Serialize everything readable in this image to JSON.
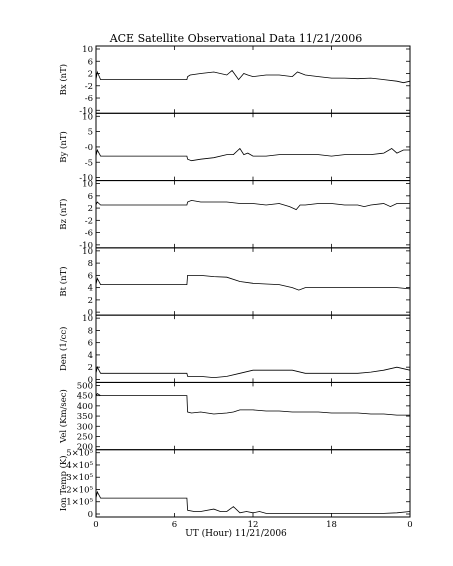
{
  "chart_data": {
    "type": "line",
    "title": "ACE Satellite Observational Data   11/21/2006",
    "xlabel": "UT (Hour)   11/21/2006",
    "x_ticks": [
      "0",
      "6",
      "12",
      "18",
      "0"
    ],
    "xlim": [
      0,
      24
    ],
    "panels": [
      {
        "ylabel": "Bx (nT)",
        "ylim": [
          -10,
          10
        ],
        "ytick_labels": [
          "10",
          "6",
          "2",
          "-2",
          "-6",
          "-10"
        ],
        "y_ticks": [
          10,
          6,
          2,
          -2,
          -6,
          -10
        ],
        "x": [
          0,
          0.1,
          0.25,
          0.35,
          6.95,
          7.0,
          7.2,
          8,
          9,
          10,
          10.4,
          10.9,
          11.3,
          11.6,
          12,
          13,
          14,
          15,
          15.4,
          16,
          17,
          18,
          19,
          20,
          21,
          22,
          23,
          23.5,
          24
        ],
        "values": [
          0,
          2.5,
          1,
          0,
          0,
          1,
          1.5,
          2,
          2.5,
          1.5,
          3,
          0,
          2,
          1.5,
          1,
          1.5,
          1.5,
          1,
          2.5,
          1.5,
          1,
          0.5,
          0.5,
          0.3,
          0.5,
          0,
          -0.5,
          -1,
          -0.5
        ]
      },
      {
        "ylabel": "By (nT)",
        "ylim": [
          -10,
          10
        ],
        "ytick_labels": [
          "10",
          "5",
          "-0",
          "-5",
          "-10"
        ],
        "y_ticks": [
          10,
          5,
          0,
          -5,
          -10
        ],
        "x": [
          0,
          0.1,
          0.35,
          6.95,
          7.0,
          7.3,
          8,
          9,
          10,
          10.5,
          11,
          11.3,
          11.6,
          12,
          13,
          14,
          15,
          16,
          17,
          18,
          19,
          20,
          21,
          22,
          22.6,
          23,
          23.5,
          24
        ],
        "values": [
          -3,
          -1,
          -3,
          -3,
          -4,
          -4.5,
          -4,
          -3.5,
          -2.5,
          -2.5,
          -0.5,
          -2.5,
          -2,
          -3,
          -3,
          -2.5,
          -2.5,
          -2.5,
          -2.5,
          -3,
          -2.5,
          -2.5,
          -2.5,
          -2,
          -0.5,
          -2,
          -1,
          -1
        ]
      },
      {
        "ylabel": "Bz (nT)",
        "ylim": [
          -10,
          10
        ],
        "ytick_labels": [
          "10",
          "6",
          "2",
          "-2",
          "-6",
          "-10"
        ],
        "y_ticks": [
          10,
          6,
          2,
          -2,
          -6,
          -10
        ],
        "x": [
          0,
          0.1,
          0.35,
          6.95,
          7.0,
          7.3,
          8,
          9,
          10,
          11,
          12,
          13,
          14,
          14.8,
          15.3,
          15.6,
          16,
          17,
          18,
          19,
          20,
          20.5,
          21,
          22,
          22.5,
          23,
          24
        ],
        "values": [
          3,
          4,
          3,
          3,
          4,
          4.5,
          4,
          4,
          4,
          3.5,
          3.5,
          3,
          3.5,
          2.5,
          1.5,
          3,
          3,
          3.5,
          3.5,
          3,
          3,
          2.5,
          3,
          3.5,
          2.5,
          3.5,
          3.5
        ]
      },
      {
        "ylabel": "Bt (nT)",
        "ylim": [
          0,
          10
        ],
        "ytick_labels": [
          "10",
          "8",
          "6",
          "4",
          "2",
          "0"
        ],
        "y_ticks": [
          10,
          8,
          6,
          4,
          2,
          0
        ],
        "x": [
          0,
          0.1,
          0.35,
          6.95,
          7.0,
          8,
          9,
          10,
          11,
          12,
          13,
          14,
          15,
          15.5,
          16,
          17,
          18,
          19,
          20,
          21,
          22,
          23,
          24
        ],
        "values": [
          4.5,
          5.5,
          4.5,
          4.5,
          6,
          6,
          5.8,
          5.7,
          5,
          4.7,
          4.6,
          4.5,
          4,
          3.6,
          4,
          4,
          4,
          4,
          4,
          4,
          4,
          4,
          3.8
        ]
      },
      {
        "ylabel": "Den (1/cc)",
        "ylim": [
          0,
          10
        ],
        "ytick_labels": [
          "10",
          "8",
          "6",
          "4",
          "2",
          "0"
        ],
        "y_ticks": [
          10,
          8,
          6,
          4,
          2,
          0
        ],
        "x": [
          0,
          0.1,
          0.35,
          6.95,
          7.0,
          7.5,
          8,
          9,
          10,
          11,
          12,
          13,
          14,
          15,
          16,
          17,
          18,
          19,
          20,
          21,
          22,
          23,
          24
        ],
        "values": [
          1,
          2,
          1,
          1,
          0.5,
          0.5,
          0.5,
          0.3,
          0.5,
          1,
          1.5,
          1.5,
          1.5,
          1.5,
          1,
          1,
          1,
          1,
          1,
          1.2,
          1.5,
          2,
          1.5
        ]
      },
      {
        "ylabel": "Vel (Km/sec)",
        "ylim": [
          200,
          500
        ],
        "ytick_labels": [
          "500",
          "450",
          "400",
          "350",
          "300",
          "250",
          "200"
        ],
        "y_ticks": [
          500,
          450,
          400,
          350,
          300,
          250,
          200
        ],
        "x": [
          0,
          0.1,
          0.35,
          6.95,
          7.0,
          7.3,
          8,
          9,
          10,
          10.5,
          11,
          12,
          13,
          14,
          15,
          16,
          17,
          18,
          19,
          20,
          21,
          22,
          23,
          24
        ],
        "values": [
          450,
          460,
          450,
          450,
          370,
          365,
          370,
          360,
          365,
          370,
          380,
          380,
          375,
          375,
          370,
          370,
          370,
          365,
          365,
          365,
          360,
          360,
          355,
          355
        ]
      },
      {
        "ylabel": "Ion Temp (K)",
        "ylim": [
          0,
          500000
        ],
        "ytick_labels": [
          "5×10⁵",
          "4×10⁵",
          "3×10⁵",
          "2×10⁵",
          "1×10⁵",
          "0"
        ],
        "y_ticks": [
          500000,
          400000,
          300000,
          200000,
          100000,
          0
        ],
        "x": [
          0,
          0.1,
          0.35,
          6.95,
          7.0,
          7.5,
          8,
          9,
          9.5,
          10,
          10.5,
          11,
          11.5,
          12,
          12.5,
          13,
          14,
          15,
          16,
          17,
          18,
          19,
          20,
          21,
          22,
          23,
          24
        ],
        "values": [
          130000,
          180000,
          130000,
          130000,
          30000,
          20000,
          20000,
          40000,
          20000,
          20000,
          60000,
          10000,
          20000,
          10000,
          20000,
          5000,
          5000,
          5000,
          5000,
          5000,
          5000,
          5000,
          5000,
          5000,
          5000,
          10000,
          20000
        ]
      }
    ]
  }
}
